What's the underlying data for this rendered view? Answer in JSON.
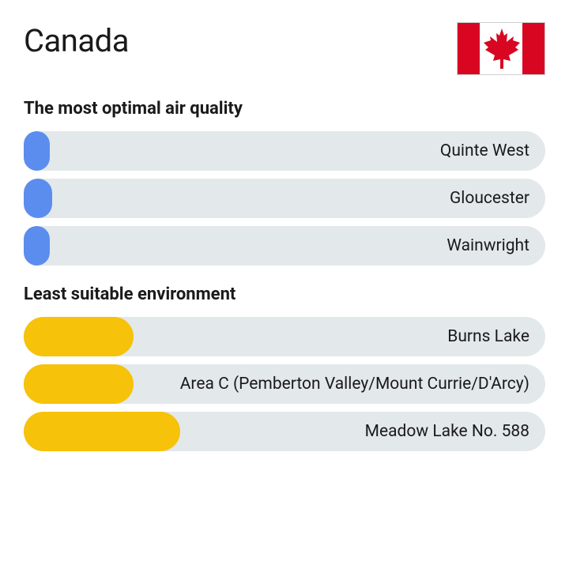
{
  "title": "Canada",
  "flag": {
    "band_color": "#d80621",
    "center_color": "#ffffff",
    "border_color": "#cfcfcf"
  },
  "track_color": "#e3e8eb",
  "label_color": "#1a1a1a",
  "sections": [
    {
      "title": "The most optimal air quality",
      "bars": [
        {
          "label": "Quinte West",
          "width_pct": 5.0,
          "color": "#5b8def"
        },
        {
          "label": "Gloucester",
          "width_pct": 5.5,
          "color": "#5b8def"
        },
        {
          "label": "Wainwright",
          "width_pct": 5.0,
          "color": "#5b8def"
        }
      ]
    },
    {
      "title": "Least suitable environment",
      "bars": [
        {
          "label": "Burns Lake",
          "width_pct": 21.0,
          "color": "#f6c20a"
        },
        {
          "label": "Area C (Pemberton Valley/Mount Currie/D'Arcy)",
          "width_pct": 21.0,
          "color": "#f6c20a"
        },
        {
          "label": "Meadow Lake No. 588",
          "width_pct": 30.0,
          "color": "#f6c20a"
        }
      ]
    }
  ]
}
